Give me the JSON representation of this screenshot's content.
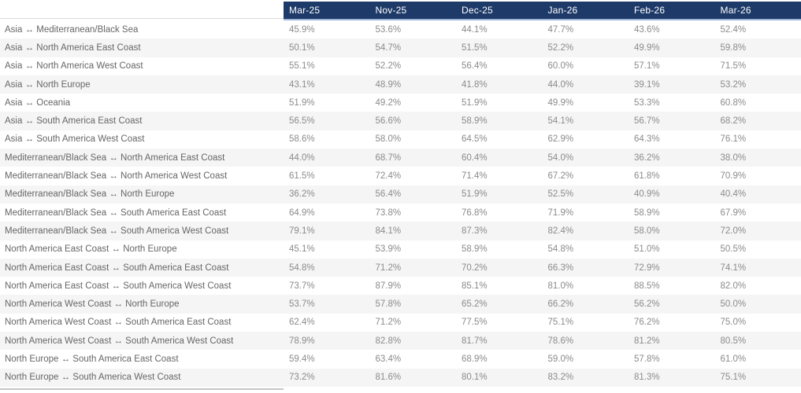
{
  "chart_data": {
    "type": "table",
    "title": "",
    "categories": [
      "Mar-25",
      "Nov-25",
      "Dec-25",
      "Jan-26",
      "Feb-26",
      "Mar-26"
    ],
    "value_format": "percent_one_decimal",
    "legend_position": "none",
    "grid": "row-stripes",
    "series": [
      {
        "name": "Asia ↔ Mediterranean/Black Sea",
        "values": [
          45.9,
          53.6,
          44.1,
          47.7,
          43.6,
          52.4
        ]
      },
      {
        "name": "Asia ↔ North America East Coast",
        "values": [
          50.1,
          54.7,
          51.5,
          52.2,
          49.9,
          59.8
        ]
      },
      {
        "name": "Asia ↔ North America West Coast",
        "values": [
          55.1,
          52.2,
          56.4,
          60.0,
          57.1,
          71.5
        ]
      },
      {
        "name": "Asia ↔ North Europe",
        "values": [
          43.1,
          48.9,
          41.8,
          44.0,
          39.1,
          53.2
        ]
      },
      {
        "name": "Asia ↔ Oceania",
        "values": [
          51.9,
          49.2,
          51.9,
          49.9,
          53.3,
          60.8
        ]
      },
      {
        "name": "Asia ↔ South America East Coast",
        "values": [
          56.5,
          56.6,
          58.9,
          54.1,
          56.7,
          68.2
        ]
      },
      {
        "name": "Asia ↔ South America West Coast",
        "values": [
          58.6,
          58.0,
          64.5,
          62.9,
          64.3,
          76.1
        ]
      },
      {
        "name": "Mediterranean/Black Sea ↔ North America East Coast",
        "values": [
          44.0,
          68.7,
          60.4,
          54.0,
          36.2,
          38.0
        ]
      },
      {
        "name": "Mediterranean/Black Sea ↔ North America West Coast",
        "values": [
          61.5,
          72.4,
          71.4,
          67.2,
          61.8,
          70.9
        ]
      },
      {
        "name": "Mediterranean/Black Sea ↔ North Europe",
        "values": [
          36.2,
          56.4,
          51.9,
          52.5,
          40.9,
          40.4
        ]
      },
      {
        "name": "Mediterranean/Black Sea ↔ South America East Coast",
        "values": [
          64.9,
          73.8,
          76.8,
          71.9,
          58.9,
          67.9
        ]
      },
      {
        "name": "Mediterranean/Black Sea ↔ South America West Coast",
        "values": [
          79.1,
          84.1,
          87.3,
          82.4,
          58.0,
          72.0
        ]
      },
      {
        "name": "North America East Coast ↔ North Europe",
        "values": [
          45.1,
          53.9,
          58.9,
          54.8,
          51.0,
          50.5
        ]
      },
      {
        "name": "North America East Coast ↔ South America East Coast",
        "values": [
          54.8,
          71.2,
          70.2,
          66.3,
          72.9,
          74.1
        ]
      },
      {
        "name": "North America East Coast ↔ South America West Coast",
        "values": [
          73.7,
          87.9,
          85.1,
          81.0,
          88.5,
          82.0
        ]
      },
      {
        "name": "North America West Coast ↔ North Europe",
        "values": [
          53.7,
          57.8,
          65.2,
          66.2,
          56.2,
          50.0
        ]
      },
      {
        "name": "North America West Coast ↔ South America East Coast",
        "values": [
          62.4,
          71.2,
          77.5,
          75.1,
          76.2,
          75.0
        ]
      },
      {
        "name": "North America West Coast ↔ South America West Coast",
        "values": [
          78.9,
          82.8,
          81.7,
          78.6,
          81.2,
          80.5
        ]
      },
      {
        "name": "North Europe ↔ South America East Coast",
        "values": [
          59.4,
          63.4,
          68.9,
          59.0,
          57.8,
          61.0
        ]
      },
      {
        "name": "North Europe ↔ South America West Coast",
        "values": [
          73.2,
          81.6,
          80.1,
          83.2,
          81.3,
          75.1
        ]
      }
    ]
  },
  "colors": {
    "header_bg": "#1e3a68",
    "header_text": "#ffffff",
    "header_underline": "#9db5d8",
    "row_stripe": "#f5f5f5",
    "row_white": "#ffffff",
    "label_text": "#666666",
    "value_text": "#8b8b8b",
    "label_header_border": "#d9d9d9",
    "bottom_border": "#c6c6c6"
  }
}
